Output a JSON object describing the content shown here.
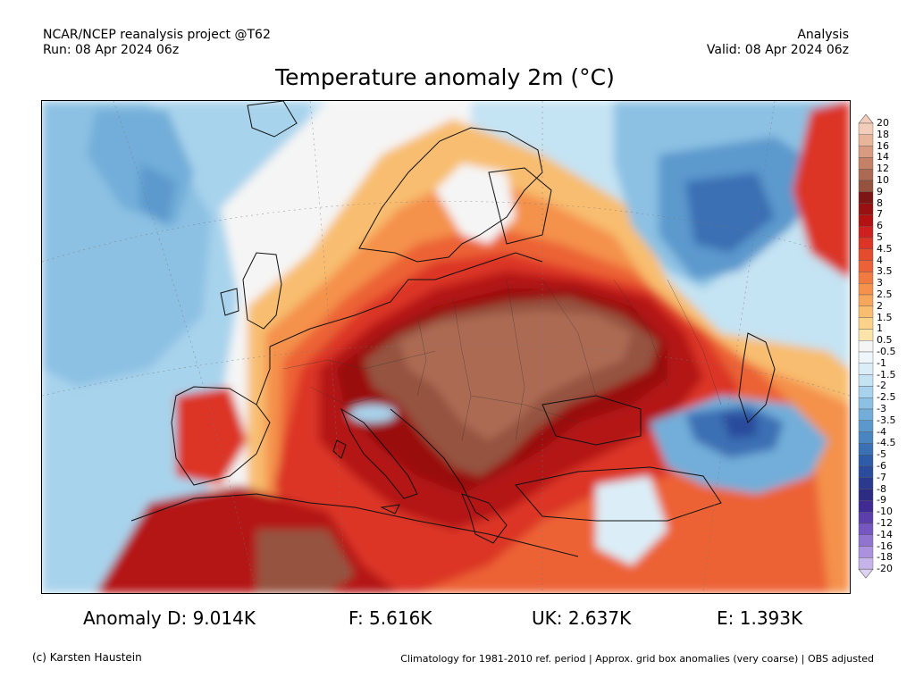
{
  "header": {
    "source": "NCAR/NCEP reanalysis project @T62",
    "run": "Run: 08 Apr 2024 06z",
    "kind": "Analysis",
    "valid": "Valid: 08 Apr 2024 06z",
    "title": "Temperature anomaly 2m (°C)"
  },
  "colorbar": {
    "levels": [
      {
        "label": "20",
        "color": "#f2cdb9"
      },
      {
        "label": "18",
        "color": "#e8b49a"
      },
      {
        "label": "16",
        "color": "#d99b80"
      },
      {
        "label": "14",
        "color": "#c58166"
      },
      {
        "label": "12",
        "color": "#ad6a52"
      },
      {
        "label": "10",
        "color": "#95533f"
      },
      {
        "label": "9",
        "color": "#7d1515"
      },
      {
        "label": "8",
        "color": "#991010"
      },
      {
        "label": "7",
        "color": "#b41212"
      },
      {
        "label": "6",
        "color": "#cf1f1f"
      },
      {
        "label": "5",
        "color": "#dc3526"
      },
      {
        "label": "4.5",
        "color": "#e54b2d"
      },
      {
        "label": "4",
        "color": "#ec6236"
      },
      {
        "label": "3.5",
        "color": "#f17a40"
      },
      {
        "label": "3",
        "color": "#f4914c"
      },
      {
        "label": "2.5",
        "color": "#f6a75c"
      },
      {
        "label": "2",
        "color": "#f8bd6f"
      },
      {
        "label": "1.5",
        "color": "#fad288"
      },
      {
        "label": "1",
        "color": "#fbe4a8"
      },
      {
        "label": "0.5",
        "color": "#f5f5f5"
      },
      {
        "label": "-0.5",
        "color": "#eef6fb"
      },
      {
        "label": "-1",
        "color": "#dbeef8"
      },
      {
        "label": "-1.5",
        "color": "#c4e3f3"
      },
      {
        "label": "-2",
        "color": "#a8d3ec"
      },
      {
        "label": "-2.5",
        "color": "#8cc1e3"
      },
      {
        "label": "-3",
        "color": "#72aed9"
      },
      {
        "label": "-3.5",
        "color": "#5b99cd"
      },
      {
        "label": "-4",
        "color": "#4885c1"
      },
      {
        "label": "-4.5",
        "color": "#3a70b4"
      },
      {
        "label": "-5",
        "color": "#2f5ca8"
      },
      {
        "label": "-6",
        "color": "#2b4b9c"
      },
      {
        "label": "-7",
        "color": "#2a3b8f"
      },
      {
        "label": "-8",
        "color": "#2e2b85"
      },
      {
        "label": "-9",
        "color": "#3f2b93"
      },
      {
        "label": "-10",
        "color": "#5b3fab"
      },
      {
        "label": "-12",
        "color": "#7656c0"
      },
      {
        "label": "-14",
        "color": "#9173d0"
      },
      {
        "label": "-16",
        "color": "#ac92de"
      },
      {
        "label": "-18",
        "color": "#c6b3ea"
      },
      {
        "label": "-20",
        "color": "#ded2f4"
      }
    ]
  },
  "anomalies": [
    {
      "label": "Anomaly D: 9.014K"
    },
    {
      "label": "F: 5.616K"
    },
    {
      "label": "UK: 2.637K"
    },
    {
      "label": "E: 1.393K"
    }
  ],
  "footer": {
    "credit": "(c) Karsten Haustein",
    "note": "Climatology for 1981-2010 ref. period | Approx. grid box anomalies (very coarse) | OBS adjusted"
  }
}
